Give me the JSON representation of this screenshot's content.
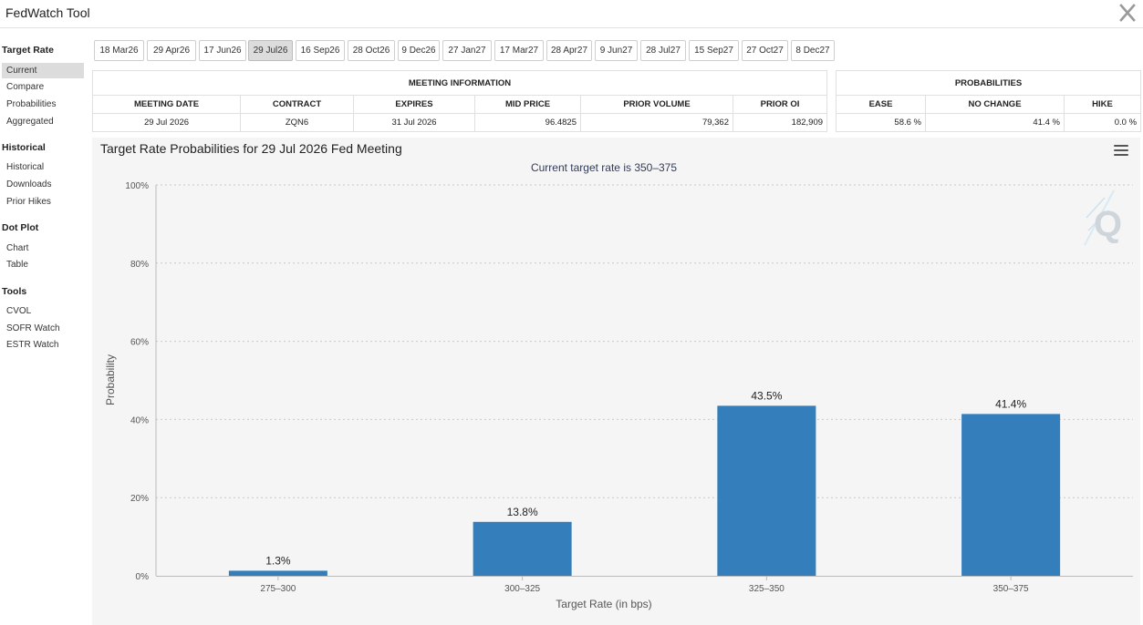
{
  "window": {
    "title": "FedWatch Tool",
    "close_label": "X"
  },
  "sidebar": {
    "sections": [
      {
        "heading": "Target Rate",
        "items": [
          {
            "label": "Current",
            "active": true
          },
          {
            "label": "Compare"
          },
          {
            "label": "Probabilities"
          },
          {
            "label": "Aggregated"
          }
        ]
      },
      {
        "heading": "Historical",
        "items": [
          {
            "label": "Historical"
          },
          {
            "label": "Downloads"
          },
          {
            "label": "Prior Hikes"
          }
        ]
      },
      {
        "heading": "Dot Plot",
        "items": [
          {
            "label": "Chart"
          },
          {
            "label": "Table"
          }
        ]
      },
      {
        "heading": "Tools",
        "items": [
          {
            "label": "CVOL"
          },
          {
            "label": "SOFR Watch"
          },
          {
            "label": "ESTR Watch"
          }
        ]
      }
    ]
  },
  "meeting_tabs": [
    {
      "label": "18 Mar26"
    },
    {
      "label": "29 Apr26"
    },
    {
      "label": "17 Jun26"
    },
    {
      "label": "29 Jul26",
      "active": true
    },
    {
      "label": "16 Sep26"
    },
    {
      "label": "28 Oct26"
    },
    {
      "label": "9 Dec26"
    },
    {
      "label": "27 Jan27"
    },
    {
      "label": "17 Mar27"
    },
    {
      "label": "28 Apr27"
    },
    {
      "label": "9 Jun27"
    },
    {
      "label": "28 Jul27"
    },
    {
      "label": "15 Sep27"
    },
    {
      "label": "27 Oct27"
    },
    {
      "label": "8 Dec27"
    }
  ],
  "meeting_info": {
    "title": "MEETING INFORMATION",
    "headers": [
      "MEETING DATE",
      "CONTRACT",
      "EXPIRES",
      "MID PRICE",
      "PRIOR VOLUME",
      "PRIOR OI"
    ],
    "row": [
      "29 Jul 2026",
      "ZQN6",
      "31 Jul 2026",
      "96.4825",
      "79,362",
      "182,909"
    ]
  },
  "probabilities": {
    "title": "PROBABILITIES",
    "headers": [
      "EASE",
      "NO CHANGE",
      "HIKE"
    ],
    "row": [
      "58.6 %",
      "41.4 %",
      "0.0 %"
    ]
  },
  "chart": {
    "title": "Target Rate Probabilities for 29 Jul 2026 Fed Meeting",
    "subtitle": "Current target rate is 350–375",
    "menu_icon": "hamburger-menu-icon",
    "watermark_icon": "q-watermark-icon",
    "bar_color": "#337ebb",
    "grid_color": "#c8c8c8"
  },
  "chart_data": {
    "type": "bar",
    "title": "Target Rate Probabilities for 29 Jul 2026 Fed Meeting",
    "subtitle": "Current target rate is 350–375",
    "categories": [
      "275–300",
      "300–325",
      "325–350",
      "350–375"
    ],
    "values": [
      1.3,
      13.8,
      43.5,
      41.4
    ],
    "data_labels": [
      "1.3%",
      "13.8%",
      "43.5%",
      "41.4%"
    ],
    "xlabel": "Target Rate (in bps)",
    "ylabel": "Probability",
    "ylim": [
      0,
      100
    ],
    "yticks": [
      "0%",
      "20%",
      "40%",
      "60%",
      "80%",
      "100%"
    ],
    "ytick_values": [
      0,
      20,
      40,
      60,
      80,
      100
    ],
    "grid": true,
    "legend": "none"
  }
}
